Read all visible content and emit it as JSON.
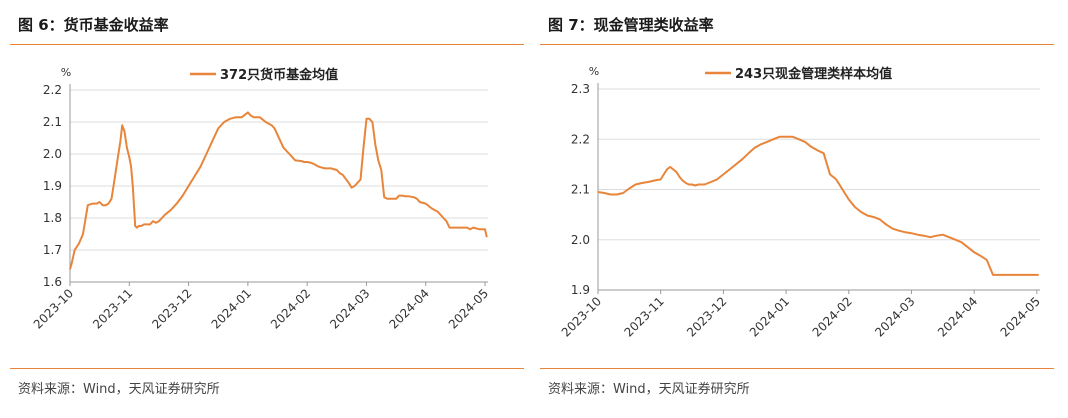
{
  "charts": [
    {
      "figure_title": "图 6：货币基金收益率",
      "source": "资料来源：Wind，天风证券研究所",
      "chart_data": {
        "type": "line",
        "unit_label": "%",
        "ylim": [
          1.6,
          2.2
        ],
        "yticks": [
          1.6,
          1.7,
          1.8,
          1.9,
          2.0,
          2.1,
          2.2
        ],
        "xlim": [
          0,
          7.05
        ],
        "xticks": [
          {
            "pos": 0,
            "label": "2023-10"
          },
          {
            "pos": 1,
            "label": "2023-11"
          },
          {
            "pos": 2,
            "label": "2023-12"
          },
          {
            "pos": 3,
            "label": "2024-01"
          },
          {
            "pos": 4,
            "label": "2024-02"
          },
          {
            "pos": 5,
            "label": "2024-03"
          },
          {
            "pos": 6,
            "label": "2024-04"
          },
          {
            "pos": 7,
            "label": "2024-05"
          }
        ],
        "legend_position": "top-center",
        "grid": "horizontal",
        "series": [
          {
            "name": "372只货币基金均值",
            "color": "#E8853A",
            "x": [
              0,
              0.03,
              0.08,
              0.15,
              0.22,
              0.3,
              0.38,
              0.45,
              0.5,
              0.55,
              0.6,
              0.65,
              0.7,
              0.75,
              0.8,
              0.85,
              0.88,
              0.92,
              0.96,
              1.0,
              1.03,
              1.06,
              1.1,
              1.13,
              1.16,
              1.2,
              1.25,
              1.3,
              1.35,
              1.4,
              1.45,
              1.5,
              1.55,
              1.6,
              1.7,
              1.8,
              1.9,
              2.0,
              2.1,
              2.2,
              2.3,
              2.4,
              2.5,
              2.6,
              2.7,
              2.8,
              2.9,
              3.0,
              3.05,
              3.1,
              3.15,
              3.2,
              3.3,
              3.4,
              3.45,
              3.5,
              3.6,
              3.7,
              3.75,
              3.8,
              3.9,
              3.95,
              4.0,
              4.05,
              4.1,
              4.15,
              4.2,
              4.3,
              4.4,
              4.5,
              4.55,
              4.6,
              4.7,
              4.75,
              4.8,
              4.9,
              4.95,
              5.0,
              5.05,
              5.1,
              5.15,
              5.2,
              5.25,
              5.3,
              5.35,
              5.4,
              5.45,
              5.5,
              5.55,
              5.6,
              5.65,
              5.7,
              5.8,
              5.85,
              5.9,
              6.0,
              6.1,
              6.15,
              6.2,
              6.3,
              6.35,
              6.4,
              6.5,
              6.55,
              6.6,
              6.7,
              6.75,
              6.8,
              6.9,
              7.0,
              7.03
            ],
            "values": [
              1.64,
              1.66,
              1.7,
              1.72,
              1.75,
              1.84,
              1.845,
              1.845,
              1.85,
              1.84,
              1.84,
              1.845,
              1.86,
              1.92,
              1.98,
              2.04,
              2.09,
              2.07,
              2.02,
              1.99,
              1.96,
              1.9,
              1.775,
              1.77,
              1.775,
              1.775,
              1.78,
              1.78,
              1.78,
              1.79,
              1.785,
              1.79,
              1.8,
              1.81,
              1.825,
              1.845,
              1.87,
              1.9,
              1.93,
              1.96,
              2.0,
              2.04,
              2.08,
              2.1,
              2.11,
              2.115,
              2.115,
              2.13,
              2.12,
              2.115,
              2.115,
              2.115,
              2.1,
              2.09,
              2.08,
              2.06,
              2.02,
              2.0,
              1.99,
              1.98,
              1.978,
              1.975,
              1.975,
              1.973,
              1.97,
              1.965,
              1.96,
              1.955,
              1.955,
              1.95,
              1.94,
              1.935,
              1.91,
              1.895,
              1.9,
              1.92,
              2.02,
              2.11,
              2.11,
              2.1,
              2.03,
              1.98,
              1.95,
              1.865,
              1.86,
              1.86,
              1.86,
              1.86,
              1.87,
              1.87,
              1.868,
              1.868,
              1.865,
              1.86,
              1.85,
              1.845,
              1.83,
              1.825,
              1.82,
              1.8,
              1.79,
              1.77,
              1.77,
              1.77,
              1.77,
              1.77,
              1.765,
              1.77,
              1.765,
              1.765,
              1.74
            ]
          }
        ]
      }
    },
    {
      "figure_title": "图 7：现金管理类收益率",
      "source": "资料来源：Wind，天风证券研究所",
      "chart_data": {
        "type": "line",
        "unit_label": "%",
        "ylim": [
          1.9,
          2.3
        ],
        "yticks": [
          1.9,
          2.0,
          2.1,
          2.2,
          2.3
        ],
        "xlim": [
          0,
          7.05
        ],
        "xticks": [
          {
            "pos": 0,
            "label": "2023-10"
          },
          {
            "pos": 1,
            "label": "2023-11"
          },
          {
            "pos": 2,
            "label": "2023-12"
          },
          {
            "pos": 3,
            "label": "2024-01"
          },
          {
            "pos": 4,
            "label": "2024-02"
          },
          {
            "pos": 5,
            "label": "2024-03"
          },
          {
            "pos": 6,
            "label": "2024-04"
          },
          {
            "pos": 7,
            "label": "2024-05"
          }
        ],
        "legend_position": "top-center",
        "grid": "horizontal",
        "series": [
          {
            "name": "243只现金管理类样本均值",
            "color": "#E8853A",
            "x": [
              0,
              0.1,
              0.2,
              0.3,
              0.4,
              0.5,
              0.6,
              0.7,
              0.8,
              0.9,
              1.0,
              1.05,
              1.1,
              1.15,
              1.2,
              1.25,
              1.3,
              1.35,
              1.4,
              1.45,
              1.5,
              1.55,
              1.6,
              1.7,
              1.8,
              1.9,
              2.0,
              2.1,
              2.2,
              2.3,
              2.4,
              2.5,
              2.6,
              2.7,
              2.8,
              2.9,
              3.0,
              3.1,
              3.2,
              3.3,
              3.4,
              3.5,
              3.6,
              3.7,
              3.8,
              3.9,
              4.0,
              4.1,
              4.2,
              4.3,
              4.4,
              4.5,
              4.6,
              4.7,
              4.8,
              4.9,
              5.0,
              5.1,
              5.2,
              5.3,
              5.4,
              5.5,
              5.6,
              5.7,
              5.8,
              5.9,
              6.0,
              6.1,
              6.2,
              6.3,
              6.4,
              6.5,
              6.6,
              6.7,
              6.8,
              6.9,
              7.0,
              7.03
            ],
            "values": [
              2.095,
              2.093,
              2.09,
              2.09,
              2.093,
              2.102,
              2.11,
              2.113,
              2.115,
              2.118,
              2.12,
              2.13,
              2.14,
              2.145,
              2.14,
              2.135,
              2.125,
              2.118,
              2.113,
              2.11,
              2.11,
              2.108,
              2.11,
              2.11,
              2.115,
              2.12,
              2.13,
              2.14,
              2.15,
              2.16,
              2.172,
              2.183,
              2.19,
              2.195,
              2.2,
              2.205,
              2.205,
              2.205,
              2.2,
              2.195,
              2.185,
              2.178,
              2.172,
              2.13,
              2.12,
              2.1,
              2.08,
              2.065,
              2.055,
              2.048,
              2.045,
              2.04,
              2.03,
              2.022,
              2.018,
              2.015,
              2.013,
              2.01,
              2.008,
              2.005,
              2.008,
              2.01,
              2.005,
              2.0,
              1.995,
              1.985,
              1.975,
              1.968,
              1.96,
              1.93,
              1.93,
              1.93,
              1.93,
              1.93,
              1.93,
              1.93,
              1.93,
              1.93
            ]
          }
        ]
      }
    }
  ]
}
